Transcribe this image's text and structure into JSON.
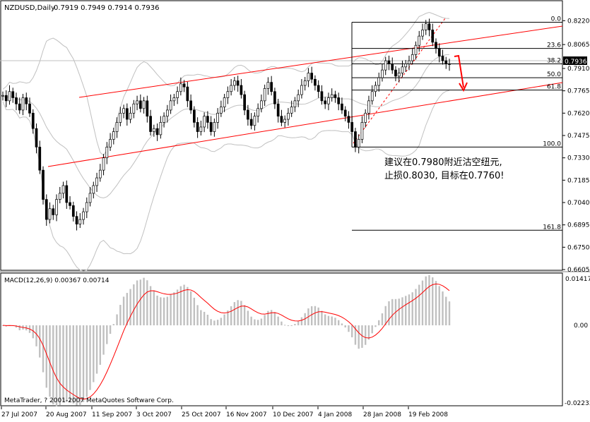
{
  "title": {
    "symbol": "NZDUSD,Daily",
    "ohlc": "0.7919 0.7949 0.7914 0.7936"
  },
  "price_axis": {
    "labels": [
      "0.8220",
      "0.8065",
      "0.7910",
      "0.7765",
      "0.7620",
      "0.7475",
      "0.7330",
      "0.7185",
      "0.7040",
      "0.6895",
      "0.6750",
      "0.6605"
    ],
    "current_price": "0.7936"
  },
  "fib_levels": [
    {
      "label": "0.0",
      "price": 0.821
    },
    {
      "label": "23.6",
      "price": 0.804
    },
    {
      "label": "38.2",
      "price": 0.794
    },
    {
      "label": "50.0",
      "price": 0.785
    },
    {
      "label": "61.8",
      "price": 0.777
    },
    {
      "label": "100.0",
      "price": 0.74
    },
    {
      "label": "161.8",
      "price": 0.686
    }
  ],
  "annotation": {
    "line1": "建议在0.7980附近沽空纽元,",
    "line2": "止损0.8030, 目标在0.7760!"
  },
  "macd": {
    "label": "MACD(12,26,9) 0.00367 0.00714",
    "axis_labels": [
      "0.01417",
      "0.00",
      "-0.02233"
    ],
    "copyright": "MetaTrader, ? 2001-2007 MetaQuotes Software Corp."
  },
  "date_axis": [
    "27 Jul 2007",
    "20 Aug 2007",
    "11 Sep 2007",
    "3 Oct 2007",
    "25 Oct 2007",
    "16 Nov 2007",
    "10 Dec 2007",
    "4 Jan 2008",
    "28 Jan 2008",
    "19 Feb 2008"
  ],
  "colors": {
    "background": "#ffffff",
    "candle": "#000000",
    "bollinger": "#c0c0c0",
    "channel": "#ff0000",
    "macd_hist": "#c0c0c0",
    "macd_signal": "#ff0000",
    "fib": "#000000"
  },
  "chart_data": {
    "type": "candlestick",
    "series_name": "NZDUSD",
    "timeframe": "Daily",
    "date_range": [
      "27 Jul 2007",
      "19 Feb 2008"
    ],
    "ylim": [
      0.6605,
      0.829
    ],
    "close": [
      0.7735,
      0.77,
      0.776,
      0.772,
      0.768,
      0.764,
      0.772,
      0.768,
      0.762,
      0.752,
      0.74,
      0.725,
      0.706,
      0.693,
      0.7,
      0.696,
      0.706,
      0.71,
      0.715,
      0.704,
      0.702,
      0.695,
      0.69,
      0.693,
      0.698,
      0.704,
      0.71,
      0.715,
      0.72,
      0.725,
      0.733,
      0.74,
      0.745,
      0.75,
      0.756,
      0.762,
      0.765,
      0.758,
      0.762,
      0.768,
      0.77,
      0.765,
      0.77,
      0.76,
      0.75,
      0.752,
      0.748,
      0.756,
      0.76,
      0.764,
      0.77,
      0.772,
      0.776,
      0.781,
      0.779,
      0.77,
      0.764,
      0.756,
      0.75,
      0.753,
      0.76,
      0.756,
      0.75,
      0.756,
      0.762,
      0.766,
      0.772,
      0.776,
      0.78,
      0.783,
      0.78,
      0.774,
      0.764,
      0.758,
      0.754,
      0.76,
      0.765,
      0.77,
      0.778,
      0.782,
      0.776,
      0.768,
      0.76,
      0.756,
      0.758,
      0.762,
      0.766,
      0.77,
      0.774,
      0.78,
      0.783,
      0.788,
      0.784,
      0.78,
      0.776,
      0.77,
      0.768,
      0.772,
      0.774,
      0.772,
      0.768,
      0.764,
      0.76,
      0.756,
      0.75,
      0.74,
      0.745,
      0.756,
      0.762,
      0.77,
      0.776,
      0.78,
      0.785,
      0.79,
      0.796,
      0.794,
      0.79,
      0.786,
      0.788,
      0.792,
      0.794,
      0.796,
      0.8,
      0.806,
      0.812,
      0.816,
      0.82,
      0.816,
      0.808,
      0.804,
      0.799,
      0.796,
      0.794,
      0.7936
    ]
  }
}
